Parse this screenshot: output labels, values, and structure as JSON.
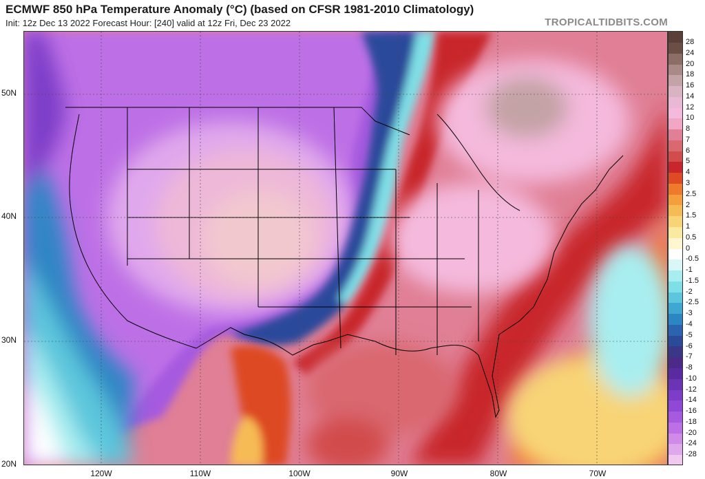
{
  "header": {
    "title": "ECMWF 850 hPa Temperature Anomaly (°C) (based on CFSR 1981-2010 Climatology)",
    "subtitle": "Init: 12z Dec 13 2022   Forecast Hour: [240]   valid at 12z Fri, Dec 23 2022",
    "brand": "TROPICALTIDBITS.COM"
  },
  "map": {
    "lat_labels": [
      "50N",
      "40N",
      "30N",
      "20N"
    ],
    "lon_labels": [
      "120W",
      "110W",
      "100W",
      "90W",
      "80W",
      "70W"
    ]
  },
  "colorbar": {
    "levels": [
      "28",
      "24",
      "20",
      "18",
      "16",
      "14",
      "12",
      "10",
      "8",
      "7",
      "6",
      "5",
      "4",
      "3",
      "2.5",
      "2",
      "1.5",
      "1",
      "0.5",
      "0",
      "-0.5",
      "-1",
      "-1.5",
      "-2",
      "-2.5",
      "-3",
      "-4",
      "-5",
      "-6",
      "-7",
      "-8",
      "-10",
      "-12",
      "-14",
      "-16",
      "-18",
      "-20",
      "-24",
      "-28"
    ],
    "colors": [
      "#6b4f45",
      "#8c6e66",
      "#a98a86",
      "#c4a3a6",
      "#dab3c2",
      "#e9b8d5",
      "#f4b9dc",
      "#f2a6c5",
      "#e07f95",
      "#d9686f",
      "#d24c4c",
      "#c8262c",
      "#dd4a24",
      "#f07a2c",
      "#f59e3e",
      "#f7bb55",
      "#f8d476",
      "#faeaa0",
      "#fdf6d0",
      "#ffffff",
      "#d9f7f7",
      "#a8eef0",
      "#7fdfe6",
      "#5cc6dc",
      "#3ea8d2",
      "#2d86c4",
      "#2a64b0",
      "#2a4a9a",
      "#3a3688",
      "#4b2a8a",
      "#5a2ba0",
      "#6b34b5",
      "#7d3dc8",
      "#9048d6",
      "#a65adf",
      "#bd70e6",
      "#d08ae8",
      "#e0a8ec",
      "#f0c8f0"
    ]
  }
}
